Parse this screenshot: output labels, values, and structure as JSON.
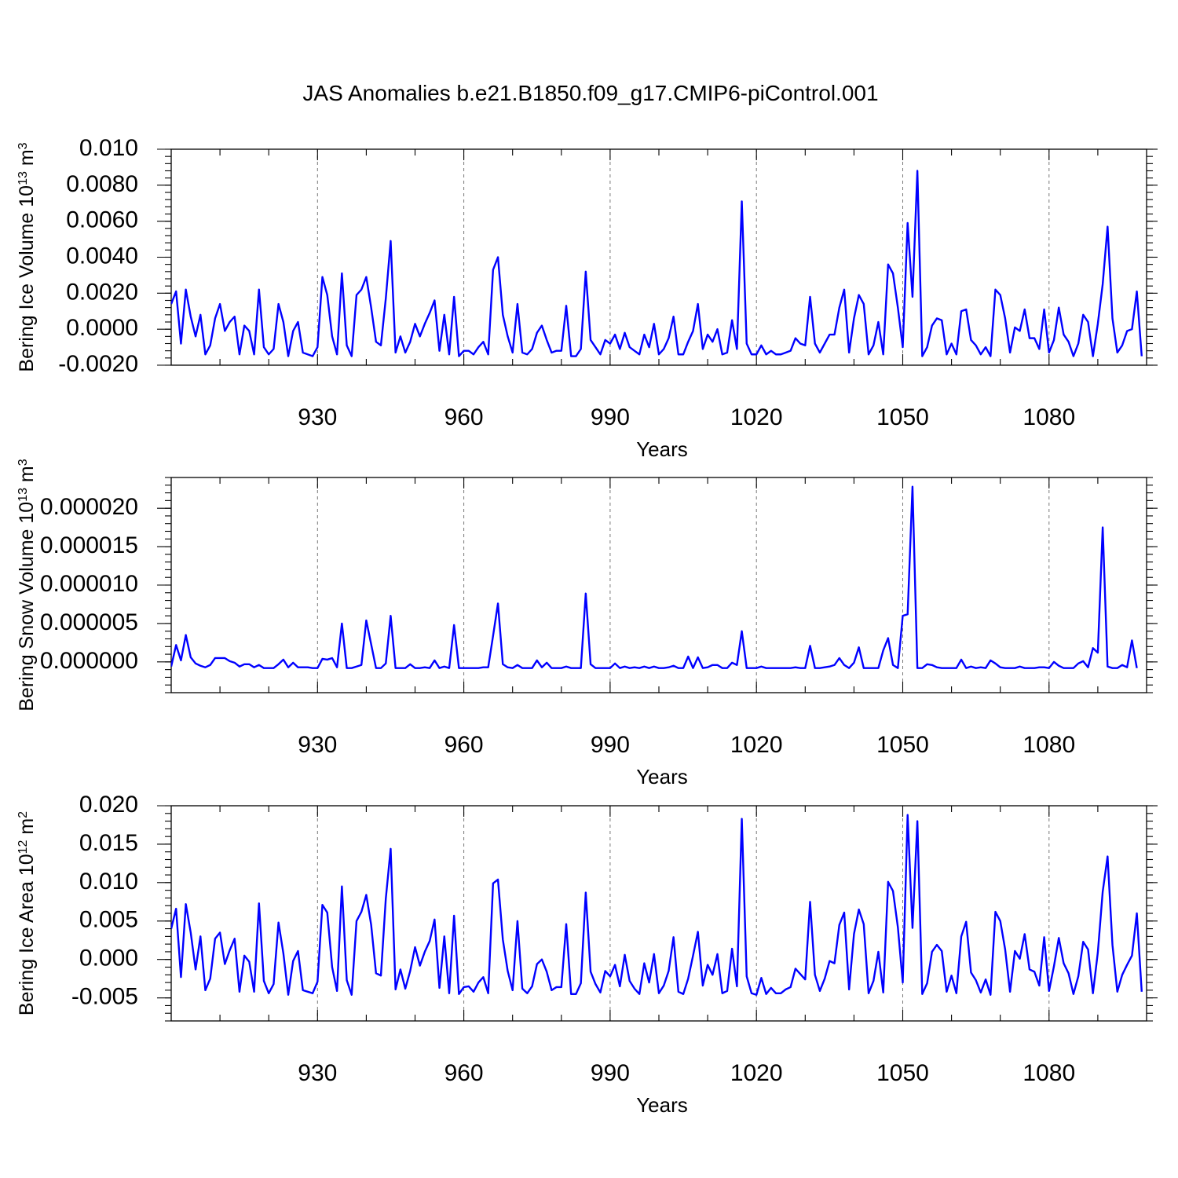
{
  "title": "JAS Anomalies b.e21.B1850.f09_g17.CMIP6-piControl.001",
  "chart_data": [
    {
      "type": "line",
      "ylabel": {
        "base": "Bering Ice Volume 10",
        "exp1": "13",
        "mid": " m",
        "exp2": "3"
      },
      "xlabel": "Years",
      "xlim": [
        900,
        1100
      ],
      "ylim": [
        -0.002,
        0.01
      ],
      "yticks": [
        -0.002,
        0.0,
        0.002,
        0.004,
        0.006,
        0.008,
        0.01
      ],
      "yticklabels": [
        "-0.0020",
        "0.0000",
        "0.0020",
        "0.0040",
        "0.0060",
        "0.0080",
        "0.010"
      ],
      "xticks": [
        930,
        960,
        990,
        1020,
        1050,
        1080
      ],
      "xticklabels": [
        "930",
        "960",
        "990",
        "1020",
        "1050",
        "1080"
      ],
      "x_start": 900,
      "values": [
        0.0014,
        0.0021,
        -0.0008,
        0.0022,
        0.0007,
        -0.0004,
        0.0008,
        -0.0014,
        -0.0009,
        0.0006,
        0.0014,
        -0.0001,
        0.0004,
        0.0007,
        -0.0014,
        0.0002,
        -0.0001,
        -0.0014,
        0.0022,
        -0.001,
        -0.0014,
        -0.0011,
        0.0014,
        0.0004,
        -0.0015,
        -0.0001,
        0.0004,
        -0.0013,
        -0.0014,
        -0.0015,
        -0.001,
        0.0029,
        0.0019,
        -0.0004,
        -0.0014,
        0.0031,
        -0.0009,
        -0.0015,
        0.0019,
        0.0022,
        0.0029,
        0.0012,
        -0.0007,
        -0.0009,
        0.0017,
        0.0049,
        -0.0013,
        -0.0004,
        -0.0013,
        -0.0007,
        0.0003,
        -0.0004,
        0.0003,
        0.0009,
        0.0016,
        -0.0012,
        0.0008,
        -0.0014,
        0.0018,
        -0.0015,
        -0.0012,
        -0.0012,
        -0.0014,
        -0.001,
        -0.0007,
        -0.0014,
        0.0033,
        0.004,
        0.0008,
        -0.0004,
        -0.0013,
        0.0014,
        -0.0013,
        -0.0014,
        -0.0011,
        -0.0002,
        0.0002,
        -0.0006,
        -0.0013,
        -0.0012,
        -0.0012,
        0.0013,
        -0.0015,
        -0.0015,
        -0.0011,
        0.0032,
        -0.0006,
        -0.001,
        -0.0014,
        -0.0006,
        -0.0008,
        -0.0003,
        -0.0011,
        -0.0002,
        -0.001,
        -0.0012,
        -0.0014,
        -0.0003,
        -0.001,
        0.0003,
        -0.0014,
        -0.0011,
        -0.0005,
        0.0007,
        -0.0014,
        -0.0014,
        -0.0007,
        -0.0001,
        0.0014,
        -0.0011,
        -0.0003,
        -0.0007,
        0.0,
        -0.0014,
        -0.0013,
        0.0005,
        -0.0011,
        0.0071,
        -0.0008,
        -0.0014,
        -0.0014,
        -0.0009,
        -0.0014,
        -0.0012,
        -0.0014,
        -0.0014,
        -0.0013,
        -0.0012,
        -0.0005,
        -0.0008,
        -0.0009,
        0.0018,
        -0.0008,
        -0.0013,
        -0.0008,
        -0.0003,
        -0.0003,
        0.0012,
        0.0022,
        -0.0013,
        0.0006,
        0.0019,
        0.0014,
        -0.0014,
        -0.0009,
        0.0004,
        -0.0014,
        0.0036,
        0.0031,
        0.0012,
        -0.001,
        0.0059,
        0.0018,
        0.0088,
        -0.0015,
        -0.001,
        0.0002,
        0.0006,
        0.0005,
        -0.0014,
        -0.0008,
        -0.0014,
        0.001,
        0.0011,
        -0.0006,
        -0.0009,
        -0.0014,
        -0.001,
        -0.0015,
        0.0022,
        0.0019,
        0.0006,
        -0.0013,
        0.0001,
        -0.0001,
        0.0011,
        -0.0005,
        -0.0005,
        -0.0011,
        0.0011,
        -0.0013,
        -0.0006,
        0.0012,
        -0.0003,
        -0.0007,
        -0.0015,
        -0.0008,
        0.0008,
        0.0004,
        -0.0015,
        0.0003,
        0.0025,
        0.0057,
        0.0006,
        -0.0013,
        -0.0009,
        -0.0001,
        0.0,
        0.0021,
        -0.0015
      ]
    },
    {
      "type": "line",
      "ylabel": {
        "base": "Bering Snow Volume 10",
        "exp1": "13",
        "mid": " m",
        "exp2": "3"
      },
      "xlabel": "Years",
      "xlim": [
        900,
        1100
      ],
      "ylim": [
        -4e-06,
        2.4e-05
      ],
      "yticks": [
        0.0,
        5e-06,
        1e-05,
        1.5e-05,
        2e-05
      ],
      "yticklabels": [
        "0.000000",
        "0.000005",
        "0.000010",
        "0.000015",
        "0.000020"
      ],
      "xticks": [
        930,
        960,
        990,
        1020,
        1050,
        1080
      ],
      "xticklabels": [
        "930",
        "960",
        "990",
        "1020",
        "1050",
        "1080"
      ],
      "x_start": 900,
      "values": [
        -6e-07,
        2.2e-06,
        2e-07,
        3.5e-06,
        6e-07,
        -2e-07,
        -5e-07,
        -7e-07,
        -4e-07,
        5e-07,
        5e-07,
        5e-07,
        1e-07,
        -1e-07,
        -6e-07,
        -3e-07,
        -3e-07,
        -7e-07,
        -4e-07,
        -8e-07,
        -8e-07,
        -8e-07,
        -3e-07,
        3e-07,
        -7e-07,
        -1e-07,
        -7e-07,
        -7e-07,
        -7e-07,
        -8e-07,
        -8e-07,
        4e-07,
        3e-07,
        5e-07,
        -7e-07,
        5e-06,
        -8e-07,
        -8e-07,
        -6e-07,
        -4e-07,
        5.4e-06,
        2.3e-06,
        -8e-07,
        -8e-07,
        -2e-07,
        6e-06,
        -8e-07,
        -8e-07,
        -8e-07,
        -3e-07,
        -8e-07,
        -8e-07,
        -7e-07,
        -8e-07,
        2e-07,
        -8e-07,
        -6e-07,
        -8e-07,
        4.8e-06,
        -8e-07,
        -8e-07,
        -8e-07,
        -8e-07,
        -8e-07,
        -7e-07,
        -7e-07,
        3.4e-06,
        7.6e-06,
        -3e-07,
        -7e-07,
        -8e-07,
        -4e-07,
        -8e-07,
        -8e-07,
        -8e-07,
        2e-07,
        -7e-07,
        -1e-07,
        -8e-07,
        -8e-07,
        -8e-07,
        -6e-07,
        -8e-07,
        -8e-07,
        -8e-07,
        8.9e-06,
        -3e-07,
        -8e-07,
        -8e-07,
        -8e-07,
        -8e-07,
        -2e-07,
        -8e-07,
        -6e-07,
        -8e-07,
        -7e-07,
        -8e-07,
        -6e-07,
        -8e-07,
        -6e-07,
        -8e-07,
        -8e-07,
        -7e-07,
        -5e-07,
        -8e-07,
        -8e-07,
        7e-07,
        -8e-07,
        6e-07,
        -8e-07,
        -7e-07,
        -4e-07,
        -4e-07,
        -8e-07,
        -8e-07,
        -1e-07,
        -4e-07,
        4e-06,
        -8e-07,
        -8e-07,
        -8e-07,
        -6e-07,
        -8e-07,
        -8e-07,
        -8e-07,
        -8e-07,
        -8e-07,
        -8e-07,
        -7e-07,
        -8e-07,
        -8e-07,
        2.1e-06,
        -8e-07,
        -8e-07,
        -7e-07,
        -6e-07,
        -4e-07,
        5e-07,
        -4e-07,
        -8e-07,
        -1e-07,
        1.9e-06,
        -8e-07,
        -8e-07,
        -8e-07,
        -8e-07,
        1.5e-06,
        3.1e-06,
        -4e-07,
        -8e-07,
        6e-06,
        6.2e-06,
        2.28e-05,
        -8e-07,
        -8e-07,
        -3e-07,
        -4e-07,
        -7e-07,
        -8e-07,
        -8e-07,
        -8e-07,
        -8e-07,
        3e-07,
        -8e-07,
        -6e-07,
        -8e-07,
        -7e-07,
        -8e-07,
        2e-07,
        -2e-07,
        -7e-07,
        -8e-07,
        -8e-07,
        -8e-07,
        -6e-07,
        -8e-07,
        -8e-07,
        -8e-07,
        -7e-07,
        -7e-07,
        -8e-07,
        0.0,
        -5e-07,
        -8e-07,
        -8e-07,
        -8e-07,
        -2e-07,
        1e-07,
        -7e-07,
        1.8e-06,
        1.2e-06,
        1.75e-05,
        -6e-07,
        -8e-07,
        -8e-07,
        -4e-07,
        -7e-07,
        2.8e-06,
        -8e-07
      ]
    },
    {
      "type": "line",
      "ylabel": {
        "base": "Bering Ice Area 10",
        "exp1": "12",
        "mid": " m",
        "exp2": "2"
      },
      "xlabel": "Years",
      "xlim": [
        900,
        1100
      ],
      "ylim": [
        -0.008,
        0.02
      ],
      "yticks": [
        -0.005,
        0.0,
        0.005,
        0.01,
        0.015,
        0.02
      ],
      "yticklabels": [
        "-0.005",
        "0.000",
        "0.005",
        "0.010",
        "0.015",
        "0.020"
      ],
      "xticks": [
        930,
        960,
        990,
        1020,
        1050,
        1080
      ],
      "xticklabels": [
        "930",
        "960",
        "990",
        "1020",
        "1050",
        "1080"
      ],
      "x_start": 900,
      "values": [
        0.004,
        0.0066,
        -0.0023,
        0.0072,
        0.0035,
        -0.0013,
        0.003,
        -0.004,
        -0.0025,
        0.0027,
        0.0035,
        -0.0006,
        0.0012,
        0.0027,
        -0.0042,
        0.0005,
        -0.0003,
        -0.0042,
        0.0073,
        -0.0028,
        -0.0044,
        -0.0032,
        0.0048,
        0.0008,
        -0.0046,
        -0.0002,
        0.0011,
        -0.004,
        -0.0042,
        -0.0044,
        -0.0029,
        0.0071,
        0.0061,
        -0.001,
        -0.0041,
        0.0095,
        -0.0027,
        -0.0046,
        0.005,
        0.0062,
        0.0084,
        0.0045,
        -0.0018,
        -0.0021,
        0.0079,
        0.0144,
        -0.0039,
        -0.0013,
        -0.0038,
        -0.0015,
        0.0016,
        -0.0008,
        0.001,
        0.0024,
        0.0052,
        -0.0037,
        0.003,
        -0.0044,
        0.0057,
        -0.0045,
        -0.0036,
        -0.0035,
        -0.0042,
        -0.003,
        -0.0023,
        -0.0044,
        0.0099,
        0.0104,
        0.0026,
        -0.0015,
        -0.004,
        0.005,
        -0.0038,
        -0.0044,
        -0.0035,
        -0.0006,
        0.0,
        -0.0016,
        -0.004,
        -0.0036,
        -0.0036,
        0.0046,
        -0.0045,
        -0.0045,
        -0.0031,
        0.0087,
        -0.0016,
        -0.0032,
        -0.0043,
        -0.0015,
        -0.0022,
        -0.0007,
        -0.0035,
        0.0006,
        -0.0028,
        -0.0038,
        -0.0045,
        -0.0005,
        -0.003,
        0.0007,
        -0.0044,
        -0.0034,
        -0.0015,
        0.0029,
        -0.0042,
        -0.0045,
        -0.0025,
        0.0005,
        0.0036,
        -0.0034,
        -0.0007,
        -0.002,
        0.0007,
        -0.0044,
        -0.0041,
        0.0014,
        -0.0035,
        0.0183,
        -0.0022,
        -0.0044,
        -0.0046,
        -0.0024,
        -0.0045,
        -0.0037,
        -0.0044,
        -0.0044,
        -0.0039,
        -0.0036,
        -0.0012,
        -0.0019,
        -0.0026,
        0.0075,
        -0.002,
        -0.0041,
        -0.0025,
        -0.0002,
        -0.0005,
        0.0045,
        0.0061,
        -0.0039,
        0.0033,
        0.0065,
        0.0046,
        -0.0044,
        -0.0028,
        0.001,
        -0.0043,
        0.0101,
        0.0089,
        0.0042,
        -0.003,
        0.0188,
        0.0041,
        0.018,
        -0.0045,
        -0.0031,
        0.001,
        0.0019,
        0.0011,
        -0.0042,
        -0.0021,
        -0.0044,
        0.003,
        0.0049,
        -0.0017,
        -0.0027,
        -0.0043,
        -0.0026,
        -0.0046,
        0.0062,
        0.005,
        0.0013,
        -0.0042,
        0.0011,
        0.0001,
        0.0033,
        -0.0013,
        -0.0016,
        -0.0034,
        0.0029,
        -0.0041,
        -0.0009,
        0.0028,
        -0.0005,
        -0.0018,
        -0.0045,
        -0.0022,
        0.0023,
        0.0013,
        -0.0044,
        0.0009,
        0.0088,
        0.0134,
        0.0019,
        -0.0042,
        -0.002,
        -0.0007,
        0.0005,
        0.006,
        -0.0042
      ]
    }
  ]
}
